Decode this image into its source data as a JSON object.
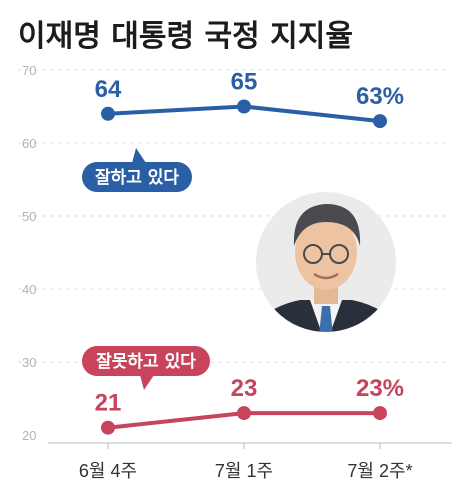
{
  "chart_data": {
    "type": "line",
    "title": "이재명 대통령 국정 지지율",
    "categories": [
      "6월 4주",
      "7월 1주",
      "7월 2주*"
    ],
    "yticks": [
      20,
      30,
      40,
      50,
      60,
      70
    ],
    "ylim": [
      20,
      70
    ],
    "grid": true,
    "series": [
      {
        "name": "잘하고 있다",
        "values": [
          64,
          65,
          63
        ],
        "labels": [
          "64",
          "65",
          "63%"
        ],
        "color": "#2b5fa5"
      },
      {
        "name": "잘못하고 있다",
        "values": [
          21,
          23,
          23
        ],
        "labels": [
          "21",
          "23",
          "23%"
        ],
        "color": "#c8435c"
      }
    ],
    "portrait": "portrait-photo"
  }
}
